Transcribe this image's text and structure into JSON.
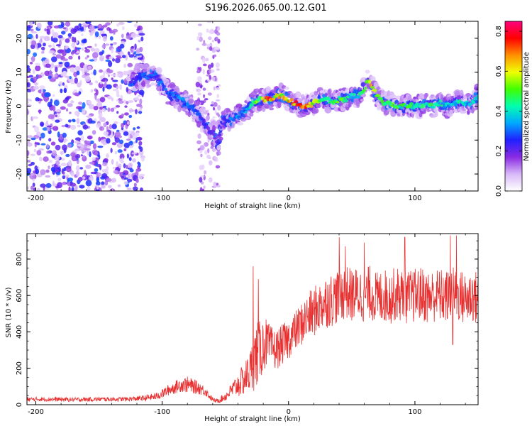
{
  "figure_title": "S196.2026.065.00.12.G01",
  "chart_data": [
    {
      "type": "heatmap",
      "xlabel": "Height of straight line (km)",
      "ylabel": "Frequency (Hz)",
      "xlim": [
        -207,
        150
      ],
      "ylim": [
        -25,
        25
      ],
      "x_ticks": [
        -200,
        -100,
        0,
        100
      ],
      "y_ticks": [
        -20,
        -10,
        0,
        10,
        20
      ],
      "colorbar": {
        "label": "Normalized spectral amplitude",
        "range": [
          0.0,
          0.85
        ],
        "ticks": [
          0.0,
          0.2,
          0.4,
          0.6,
          0.8
        ],
        "colors": [
          "#ffffff",
          "#d8b8f8",
          "#8a2be2",
          "#2020ff",
          "#00a8ff",
          "#00ffb0",
          "#40ff00",
          "#f0ff00",
          "#ff9000",
          "#ff0000",
          "#ff0080"
        ]
      },
      "ridge": {
        "x": [
          -125,
          -115,
          -105,
          -95,
          -85,
          -78,
          -72,
          -66,
          -60,
          -56,
          -52,
          -48,
          -44,
          -40,
          -36,
          -32,
          -28,
          -24,
          -20,
          -15,
          -10,
          -5,
          0,
          5,
          10,
          15,
          20,
          25,
          30,
          35,
          40,
          45,
          50,
          55,
          60,
          63,
          66,
          70,
          75,
          80,
          85,
          90,
          95,
          100,
          105,
          110,
          115,
          120,
          125,
          130,
          135,
          140,
          145,
          150
        ],
        "y": [
          7,
          9,
          9,
          4,
          2,
          0,
          -2,
          -5,
          -8,
          -11,
          -4,
          -4,
          -4,
          -3,
          -2,
          -1,
          1,
          2,
          2,
          2,
          3,
          3,
          2,
          1,
          0,
          0,
          1,
          2,
          2,
          1,
          2,
          2,
          3,
          3,
          5,
          8,
          6,
          3,
          1,
          1,
          0,
          0,
          0,
          0,
          0,
          1,
          0,
          1,
          0,
          1,
          1,
          1,
          1,
          3
        ],
        "amplitude": [
          0.25,
          0.3,
          0.3,
          0.3,
          0.35,
          0.3,
          0.3,
          0.25,
          0.2,
          0.25,
          0.25,
          0.3,
          0.35,
          0.35,
          0.35,
          0.4,
          0.45,
          0.55,
          0.65,
          0.75,
          0.7,
          0.65,
          0.7,
          0.75,
          0.8,
          0.75,
          0.65,
          0.55,
          0.5,
          0.5,
          0.55,
          0.5,
          0.45,
          0.45,
          0.5,
          0.6,
          0.65,
          0.55,
          0.5,
          0.55,
          0.55,
          0.5,
          0.5,
          0.45,
          0.45,
          0.5,
          0.45,
          0.45,
          0.4,
          0.4,
          0.45,
          0.4,
          0.4,
          0.4
        ]
      },
      "noise_band": {
        "x": [
          -207,
          -115
        ],
        "y": [
          -25,
          25
        ],
        "amplitude": [
          0.05,
          0.3
        ]
      },
      "spike_band": {
        "x": [
          -72,
          -55
        ],
        "y": [
          -25,
          25
        ],
        "amplitude": [
          0.05,
          0.2
        ]
      }
    },
    {
      "type": "line",
      "xlabel": "Height of straight line (km)",
      "ylabel": "SNR (10 * v/v)",
      "xlim": [
        -207,
        150
      ],
      "ylim": [
        0,
        940
      ],
      "x_ticks": [
        -200,
        -100,
        0,
        100
      ],
      "y_ticks": [
        0,
        200,
        400,
        600,
        800
      ],
      "series": [
        {
          "name": "SNR",
          "color": "#e83030",
          "x": [
            -207,
            -190,
            -170,
            -150,
            -130,
            -115,
            -105,
            -100,
            -95,
            -90,
            -85,
            -80,
            -75,
            -70,
            -65,
            -62,
            -58,
            -55,
            -50,
            -45,
            -40,
            -35,
            -30,
            -28,
            -25,
            -22,
            -20,
            -18,
            -15,
            -10,
            -5,
            0,
            5,
            10,
            15,
            20,
            25,
            30,
            35,
            40,
            45,
            50,
            55,
            60,
            65,
            70,
            75,
            80,
            85,
            90,
            95,
            100,
            105,
            110,
            115,
            120,
            125,
            130,
            135,
            140,
            145,
            150
          ],
          "y": [
            30,
            30,
            28,
            30,
            30,
            35,
            45,
            60,
            80,
            95,
            110,
            110,
            100,
            90,
            70,
            40,
            20,
            25,
            45,
            80,
            110,
            140,
            190,
            230,
            280,
            300,
            330,
            340,
            320,
            300,
            330,
            360,
            400,
            440,
            480,
            510,
            540,
            570,
            580,
            600,
            620,
            600,
            610,
            600,
            620,
            580,
            600,
            590,
            610,
            600,
            590,
            600,
            610,
            590,
            600,
            600,
            590,
            610,
            600,
            580,
            600,
            580
          ],
          "spread": [
            12,
            12,
            12,
            12,
            12,
            15,
            20,
            25,
            30,
            35,
            40,
            45,
            40,
            35,
            25,
            15,
            10,
            15,
            25,
            40,
            70,
            90,
            120,
            160,
            180,
            160,
            150,
            140,
            120,
            110,
            110,
            110,
            110,
            120,
            130,
            140,
            140,
            150,
            150,
            150,
            150,
            150,
            150,
            150,
            150,
            150,
            150,
            150,
            150,
            150,
            150,
            150,
            150,
            150,
            150,
            150,
            150,
            150,
            150,
            150,
            150,
            150
          ],
          "peaks": [
            [
              -28,
              760
            ],
            [
              -24,
              690
            ],
            [
              40,
              920
            ],
            [
              45,
              870
            ],
            [
              60,
              890
            ],
            [
              92,
              920
            ],
            [
              128,
              930
            ],
            [
              133,
              930
            ],
            [
              130,
              330
            ]
          ]
        }
      ]
    }
  ]
}
